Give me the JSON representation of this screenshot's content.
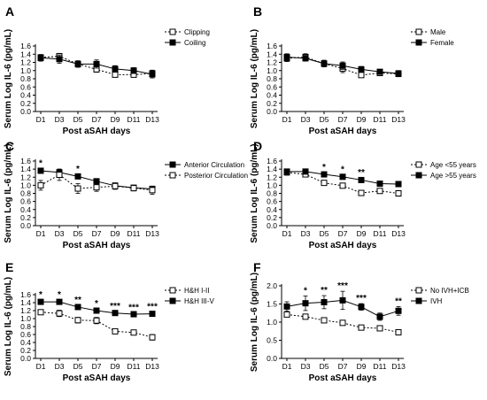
{
  "chart_data": [
    {
      "id": "A",
      "panel_label": "A",
      "type": "line",
      "categories": [
        "D1",
        "D3",
        "D5",
        "D7",
        "D9",
        "D11",
        "D13"
      ],
      "ylabel": "Serum Log IL-6 (pg/mL)",
      "xlabel": "Post aSAH days",
      "ylim": [
        0,
        1.6
      ],
      "yticks": [
        "0.0",
        "0.2",
        "0.4",
        "0.6",
        "0.8",
        "1.0",
        "1.2",
        "1.4",
        "1.6"
      ],
      "legend_position": "top-right",
      "series": [
        {
          "name": "Clipping",
          "values": [
            1.32,
            1.35,
            1.16,
            1.03,
            0.9,
            0.9,
            0.93
          ],
          "err": [
            0.07,
            0.07,
            0.07,
            0.07,
            0.06,
            0.06,
            0.08
          ],
          "marker": "open-square",
          "line": "dashed"
        },
        {
          "name": "Coiling",
          "values": [
            1.31,
            1.28,
            1.16,
            1.16,
            1.04,
            1.0,
            0.91
          ],
          "err": [
            0.08,
            0.1,
            0.08,
            0.1,
            0.08,
            0.07,
            0.09
          ],
          "marker": "filled-square",
          "line": "solid"
        }
      ],
      "significance": []
    },
    {
      "id": "B",
      "panel_label": "B",
      "type": "line",
      "categories": [
        "D1",
        "D3",
        "D5",
        "D7",
        "D9",
        "D11",
        "D13"
      ],
      "ylabel": "Serum Log IL-6 (pg/mL)",
      "xlabel": "Post aSAH days",
      "ylim": [
        0,
        1.6
      ],
      "yticks": [
        "0.0",
        "0.2",
        "0.4",
        "0.6",
        "0.8",
        "1.0",
        "1.2",
        "1.4",
        "1.6"
      ],
      "legend_position": "top-right",
      "series": [
        {
          "name": "Male",
          "values": [
            1.3,
            1.33,
            1.17,
            1.05,
            0.89,
            0.94,
            0.92
          ],
          "err": [
            0.08,
            0.08,
            0.08,
            0.1,
            0.06,
            0.06,
            0.07
          ],
          "marker": "open-square",
          "line": "dashed"
        },
        {
          "name": "Female",
          "values": [
            1.33,
            1.3,
            1.17,
            1.12,
            1.03,
            0.97,
            0.93
          ],
          "err": [
            0.08,
            0.07,
            0.08,
            0.09,
            0.07,
            0.06,
            0.07
          ],
          "marker": "filled-square",
          "line": "solid"
        }
      ],
      "significance": []
    },
    {
      "id": "C",
      "panel_label": "C",
      "type": "line",
      "categories": [
        "D1",
        "D3",
        "D5",
        "D7",
        "D9",
        "D11",
        "D13"
      ],
      "ylabel": "Serum Log IL-6 (pg/mL)",
      "xlabel": "Post aSAH days",
      "ylim": [
        0,
        1.6
      ],
      "yticks": [
        "0.0",
        "0.2",
        "0.4",
        "0.6",
        "0.8",
        "1.0",
        "1.2",
        "1.4",
        "1.6"
      ],
      "legend_position": "top-right",
      "series": [
        {
          "name": "Anterior Circulation",
          "values": [
            1.36,
            1.32,
            1.22,
            1.1,
            0.99,
            0.94,
            0.91
          ],
          "err": [
            0.05,
            0.08,
            0.05,
            0.06,
            0.06,
            0.05,
            0.06
          ],
          "marker": "filled-square",
          "line": "solid"
        },
        {
          "name": "Posterior Circulation",
          "values": [
            1.0,
            1.26,
            0.92,
            0.95,
            0.98,
            0.93,
            0.88
          ],
          "err": [
            0.12,
            0.14,
            0.12,
            0.1,
            0.08,
            0.07,
            0.1
          ],
          "marker": "open-square",
          "line": "dashed"
        }
      ],
      "significance": [
        {
          "category": "D1",
          "label": "*"
        },
        {
          "category": "D5",
          "label": "*"
        }
      ]
    },
    {
      "id": "D",
      "panel_label": "D",
      "type": "line",
      "categories": [
        "D1",
        "D3",
        "D5",
        "D7",
        "D9",
        "D11",
        "D13"
      ],
      "ylabel": "Serum Log IL-6 (pg/mL)",
      "xlabel": "Post aSAH days",
      "ylim": [
        0,
        1.6
      ],
      "yticks": [
        "0.0",
        "0.2",
        "0.4",
        "0.6",
        "0.8",
        "1.0",
        "1.2",
        "1.4",
        "1.6"
      ],
      "legend_position": "top-right",
      "series": [
        {
          "name": "Age <55 years",
          "values": [
            1.32,
            1.27,
            1.06,
            0.99,
            0.81,
            0.86,
            0.8
          ],
          "err": [
            0.07,
            0.06,
            0.05,
            0.06,
            0.05,
            0.06,
            0.07
          ],
          "marker": "open-square",
          "line": "dashed"
        },
        {
          "name": "Age >55 years",
          "values": [
            1.34,
            1.34,
            1.27,
            1.21,
            1.13,
            1.04,
            1.03
          ],
          "err": [
            0.06,
            0.06,
            0.05,
            0.05,
            0.05,
            0.05,
            0.06
          ],
          "marker": "filled-square",
          "line": "solid"
        }
      ],
      "significance": [
        {
          "category": "D5",
          "label": "*"
        },
        {
          "category": "D7",
          "label": "*"
        },
        {
          "category": "D9",
          "label": "**"
        }
      ]
    },
    {
      "id": "E",
      "panel_label": "E",
      "type": "line",
      "categories": [
        "D1",
        "D3",
        "D5",
        "D7",
        "D9",
        "D11",
        "D13"
      ],
      "ylabel": "Serum Log IL-6 (pg/mL)",
      "xlabel": "Post aSAH days",
      "ylim": [
        0,
        1.6
      ],
      "yticks": [
        "0.0",
        "0.2",
        "0.4",
        "0.6",
        "0.8",
        "1.0",
        "1.2",
        "1.4",
        "1.6"
      ],
      "legend_position": "top-right",
      "series": [
        {
          "name": "H&H I-II",
          "values": [
            1.16,
            1.13,
            0.96,
            0.95,
            0.68,
            0.65,
            0.53
          ],
          "err": [
            0.06,
            0.08,
            0.07,
            0.08,
            0.05,
            0.05,
            0.07
          ],
          "marker": "open-square",
          "line": "dashed"
        },
        {
          "name": "H&H III-V",
          "values": [
            1.42,
            1.42,
            1.29,
            1.2,
            1.14,
            1.11,
            1.12
          ],
          "err": [
            0.05,
            0.05,
            0.04,
            0.05,
            0.04,
            0.04,
            0.05
          ],
          "marker": "filled-square",
          "line": "solid"
        }
      ],
      "significance": [
        {
          "category": "D1",
          "label": "*"
        },
        {
          "category": "D3",
          "label": "*"
        },
        {
          "category": "D5",
          "label": "**"
        },
        {
          "category": "D7",
          "label": "*"
        },
        {
          "category": "D9",
          "label": "***"
        },
        {
          "category": "D11",
          "label": "***"
        },
        {
          "category": "D13",
          "label": "***"
        }
      ]
    },
    {
      "id": "F",
      "panel_label": "F",
      "type": "line",
      "categories": [
        "D1",
        "D3",
        "D5",
        "D7",
        "D9",
        "D11",
        "D13"
      ],
      "ylabel": "Serum Log IL-6 (pg/mL)",
      "xlabel": "Post aSAH days",
      "ylim": [
        0,
        2.0
      ],
      "yticks": [
        "0.0",
        "0.5",
        "1.0",
        "1.5",
        "2.0"
      ],
      "legend_position": "top-right",
      "series": [
        {
          "name": "No IVH+ICB",
          "values": [
            1.21,
            1.15,
            1.05,
            0.98,
            0.85,
            0.83,
            0.72
          ],
          "err": [
            0.06,
            0.06,
            0.06,
            0.06,
            0.05,
            0.05,
            0.06
          ],
          "marker": "open-square",
          "line": "dashed"
        },
        {
          "name": "IVH",
          "values": [
            1.43,
            1.52,
            1.55,
            1.6,
            1.42,
            1.15,
            1.31
          ],
          "err": [
            0.13,
            0.2,
            0.18,
            0.25,
            0.09,
            0.1,
            0.12
          ],
          "marker": "filled-square",
          "line": "solid"
        }
      ],
      "significance": [
        {
          "category": "D3",
          "label": "*"
        },
        {
          "category": "D5",
          "label": "**"
        },
        {
          "category": "D7",
          "label": "***"
        },
        {
          "category": "D9",
          "label": "***"
        },
        {
          "category": "D13",
          "label": "**"
        }
      ]
    }
  ]
}
